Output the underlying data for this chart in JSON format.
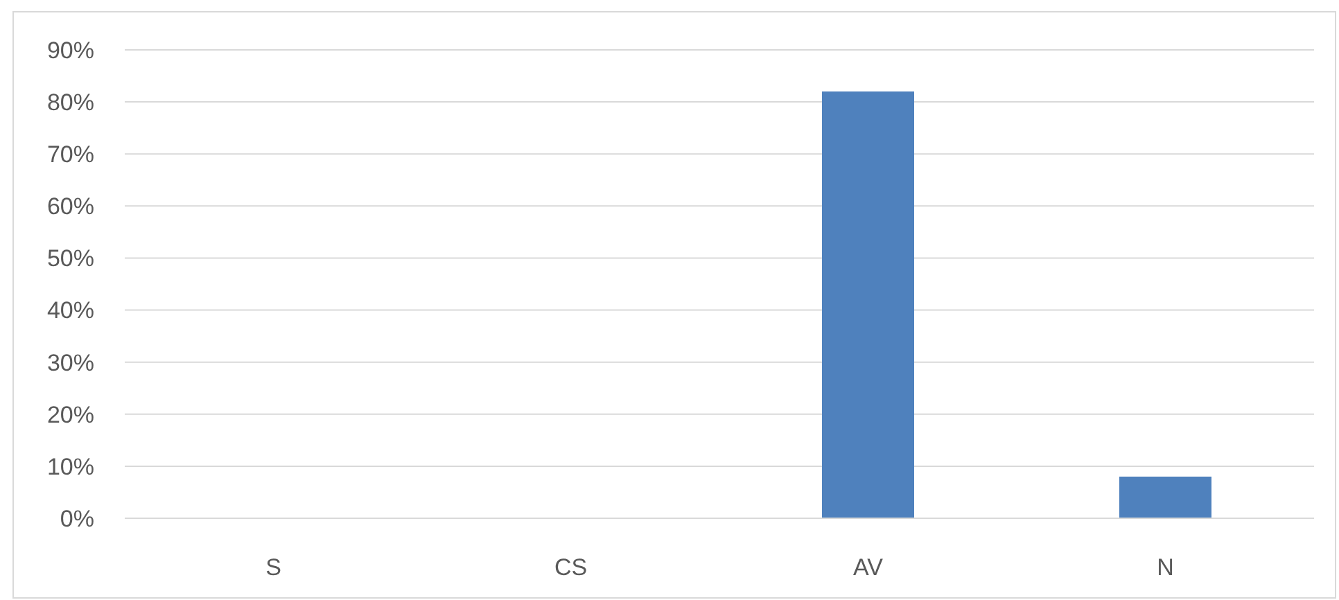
{
  "chart_data": {
    "type": "bar",
    "categories": [
      "S",
      "CS",
      "AV",
      "N"
    ],
    "values": [
      0,
      0,
      82,
      8
    ],
    "color": "#4f81bd",
    "ylim": [
      0,
      90
    ],
    "yticks": [
      {
        "value": 0,
        "label": "0%"
      },
      {
        "value": 10,
        "label": "10%"
      },
      {
        "value": 20,
        "label": "20%"
      },
      {
        "value": 30,
        "label": "30%"
      },
      {
        "value": 40,
        "label": "40%"
      },
      {
        "value": 50,
        "label": "50%"
      },
      {
        "value": 60,
        "label": "60%"
      },
      {
        "value": 70,
        "label": "70%"
      },
      {
        "value": 80,
        "label": "80%"
      },
      {
        "value": 90,
        "label": "90%"
      }
    ],
    "grid": "y"
  }
}
